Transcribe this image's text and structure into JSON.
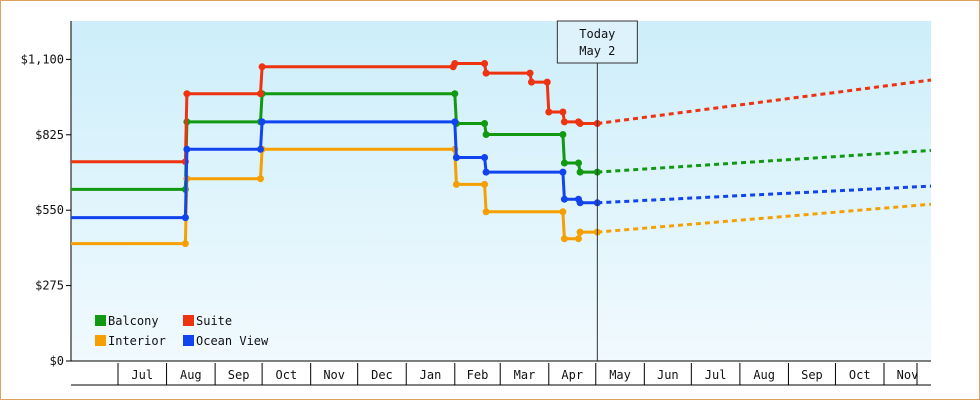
{
  "chart_data": {
    "type": "line",
    "title": "",
    "xlabel": "",
    "ylabel": "",
    "currency_prefix": "$",
    "ylim": [
      0,
      1240
    ],
    "yticks": [
      {
        "value": 0,
        "label": "$0"
      },
      {
        "value": 275,
        "label": "$275"
      },
      {
        "value": 550,
        "label": "$550"
      },
      {
        "value": 825,
        "label": "$825"
      },
      {
        "value": 1100,
        "label": "$1,100"
      }
    ],
    "x_range": [
      "2015-06-01",
      "2016-12-01"
    ],
    "months": [
      {
        "start": "2015-06-01",
        "label": ""
      },
      {
        "start": "2015-07-01",
        "label": "Jul"
      },
      {
        "start": "2015-08-01",
        "label": "Aug"
      },
      {
        "start": "2015-09-01",
        "label": "Sep"
      },
      {
        "start": "2015-10-01",
        "label": "Oct"
      },
      {
        "start": "2015-11-01",
        "label": "Nov"
      },
      {
        "start": "2015-12-01",
        "label": "Dec"
      },
      {
        "start": "2016-01-01",
        "label": "Jan"
      },
      {
        "start": "2016-02-01",
        "label": "Feb"
      },
      {
        "start": "2016-03-01",
        "label": "Mar"
      },
      {
        "start": "2016-04-01",
        "label": "Apr"
      },
      {
        "start": "2016-05-01",
        "label": "May"
      },
      {
        "start": "2016-06-01",
        "label": "Jun"
      },
      {
        "start": "2016-07-01",
        "label": "Jul"
      },
      {
        "start": "2016-08-01",
        "label": "Aug"
      },
      {
        "start": "2016-09-01",
        "label": "Sep"
      },
      {
        "start": "2016-10-01",
        "label": "Oct"
      },
      {
        "start": "2016-11-01",
        "label": "Nov"
      }
    ],
    "today": {
      "date": "2016-05-02",
      "line1": "Today",
      "line2": "May 2"
    },
    "legend": {
      "placement": "bottom-left",
      "columns": 2
    },
    "series": [
      {
        "name": "Balcony",
        "color": "#119911",
        "history": [
          [
            "2015-06-01",
            626
          ],
          [
            "2015-08-13",
            626
          ],
          [
            "2015-08-14",
            872
          ],
          [
            "2015-09-30",
            872
          ],
          [
            "2015-10-01",
            975
          ],
          [
            "2016-02-01",
            975
          ],
          [
            "2016-02-02",
            866
          ],
          [
            "2016-02-20",
            866
          ],
          [
            "2016-02-21",
            826
          ],
          [
            "2016-04-10",
            826
          ],
          [
            "2016-04-11",
            722
          ],
          [
            "2016-04-20",
            722
          ],
          [
            "2016-04-21",
            689
          ],
          [
            "2016-05-02",
            689
          ]
        ],
        "forecast": [
          [
            "2016-05-02",
            689
          ],
          [
            "2016-12-01",
            768
          ]
        ]
      },
      {
        "name": "Suite",
        "color": "#ee3311",
        "history": [
          [
            "2015-06-01",
            727
          ],
          [
            "2015-08-13",
            727
          ],
          [
            "2015-08-14",
            975
          ],
          [
            "2015-09-30",
            975
          ],
          [
            "2015-10-01",
            1073
          ],
          [
            "2016-01-31",
            1073
          ],
          [
            "2016-02-01",
            1085
          ],
          [
            "2016-02-20",
            1085
          ],
          [
            "2016-02-21",
            1050
          ],
          [
            "2016-03-20",
            1050
          ],
          [
            "2016-03-21",
            1017
          ],
          [
            "2016-03-31",
            1017
          ],
          [
            "2016-04-01",
            908
          ],
          [
            "2016-04-10",
            908
          ],
          [
            "2016-04-11",
            872
          ],
          [
            "2016-04-20",
            872
          ],
          [
            "2016-04-21",
            866
          ],
          [
            "2016-05-02",
            866
          ]
        ],
        "forecast": [
          [
            "2016-05-02",
            866
          ],
          [
            "2016-12-01",
            1025
          ]
        ]
      },
      {
        "name": "Interior",
        "color": "#f5a000",
        "history": [
          [
            "2015-06-01",
            428
          ],
          [
            "2015-08-13",
            428
          ],
          [
            "2015-08-14",
            665
          ],
          [
            "2015-09-30",
            665
          ],
          [
            "2015-10-01",
            772
          ],
          [
            "2016-02-01",
            772
          ],
          [
            "2016-02-02",
            644
          ],
          [
            "2016-02-20",
            644
          ],
          [
            "2016-02-21",
            544
          ],
          [
            "2016-04-10",
            544
          ],
          [
            "2016-04-11",
            446
          ],
          [
            "2016-04-20",
            446
          ],
          [
            "2016-04-21",
            470
          ],
          [
            "2016-05-02",
            470
          ]
        ],
        "forecast": [
          [
            "2016-05-02",
            470
          ],
          [
            "2016-12-01",
            572
          ]
        ]
      },
      {
        "name": "Ocean View",
        "color": "#1144ee",
        "history": [
          [
            "2015-06-01",
            523
          ],
          [
            "2015-08-13",
            523
          ],
          [
            "2015-08-14",
            772
          ],
          [
            "2015-09-30",
            772
          ],
          [
            "2015-10-01",
            872
          ],
          [
            "2016-02-01",
            872
          ],
          [
            "2016-02-02",
            742
          ],
          [
            "2016-02-20",
            742
          ],
          [
            "2016-02-21",
            689
          ],
          [
            "2016-04-10",
            689
          ],
          [
            "2016-04-11",
            590
          ],
          [
            "2016-04-20",
            590
          ],
          [
            "2016-04-21",
            577
          ],
          [
            "2016-05-02",
            577
          ]
        ],
        "forecast": [
          [
            "2016-05-02",
            577
          ],
          [
            "2016-12-01",
            638
          ]
        ]
      }
    ]
  }
}
